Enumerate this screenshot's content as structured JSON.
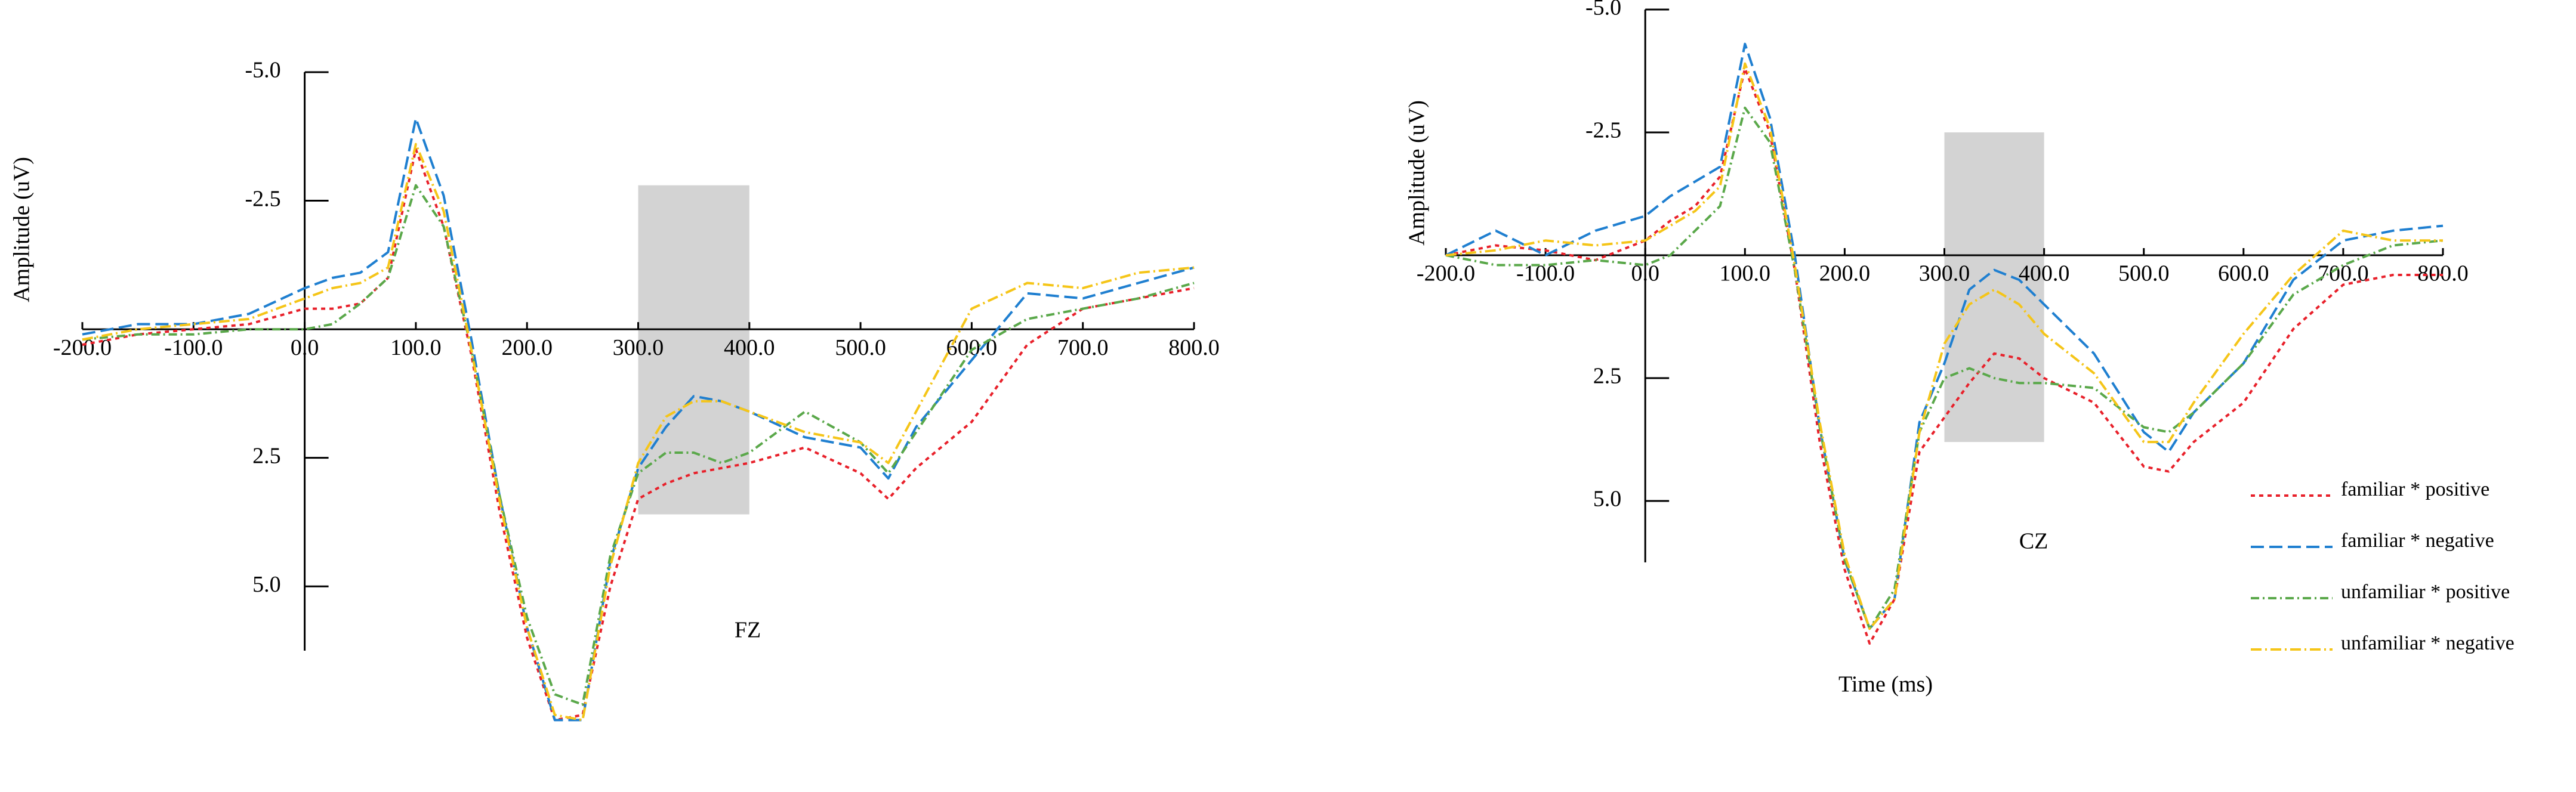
{
  "chart_data": [
    {
      "type": "line",
      "title": "FZ",
      "y_label": "Amplitude (uV)",
      "y_inverted": true,
      "xlim": [
        -200,
        800
      ],
      "ylim": [
        -5,
        6.25
      ],
      "xticks": [
        {
          "value": -200,
          "label": "-200.0"
        },
        {
          "value": -100,
          "label": "-100.0"
        },
        {
          "value": 0,
          "label": "0.0"
        },
        {
          "value": 100,
          "label": "100.0"
        },
        {
          "value": 200,
          "label": "200.0"
        },
        {
          "value": 300,
          "label": "300.0"
        },
        {
          "value": 400,
          "label": "400.0"
        },
        {
          "value": 500,
          "label": "500.0"
        },
        {
          "value": 600,
          "label": "600.0"
        },
        {
          "value": 700,
          "label": "700.0"
        },
        {
          "value": 800,
          "label": "800.0"
        }
      ],
      "yticks": [
        {
          "value": -5,
          "label": "-5.0"
        },
        {
          "value": -2.5,
          "label": "-2.5"
        },
        {
          "value": 2.5,
          "label": "2.5"
        },
        {
          "value": 5,
          "label": "5.0"
        }
      ],
      "shade": {
        "x": [
          300,
          400
        ],
        "y": [
          -2.8,
          3.6
        ],
        "color": "#d3d3d3"
      },
      "x": [
        -200,
        -150,
        -100,
        -50,
        0,
        25,
        50,
        75,
        100,
        125,
        150,
        175,
        200,
        225,
        250,
        275,
        300,
        325,
        350,
        375,
        400,
        450,
        500,
        525,
        550,
        600,
        650,
        700,
        750,
        800
      ],
      "series": [
        {
          "name": "familiar  * positive",
          "color": "#e8202a",
          "values": [
            0.3,
            0.1,
            0.0,
            -0.1,
            -0.4,
            -0.4,
            -0.5,
            -1.0,
            -3.5,
            -2.0,
            0.5,
            3.5,
            6.0,
            7.6,
            7.5,
            5.0,
            3.3,
            3.0,
            2.8,
            2.7,
            2.6,
            2.3,
            2.8,
            3.3,
            2.7,
            1.8,
            0.3,
            -0.4,
            -0.6,
            -0.8
          ]
        },
        {
          "name": "familiar  * negative",
          "color": "#1f7fd0",
          "values": [
            0.1,
            -0.1,
            -0.1,
            -0.3,
            -0.8,
            -1.0,
            -1.1,
            -1.5,
            -4.1,
            -2.6,
            0.2,
            3.2,
            5.8,
            7.6,
            7.6,
            4.5,
            2.7,
            1.9,
            1.3,
            1.4,
            1.6,
            2.1,
            2.3,
            2.9,
            1.9,
            0.6,
            -0.7,
            -0.6,
            -0.9,
            -1.2
          ]
        },
        {
          "name": "unfamiliar  * positive",
          "color": "#5aa84a",
          "values": [
            0.2,
            0.1,
            0.1,
            0.0,
            0.0,
            -0.1,
            -0.5,
            -1.0,
            -2.8,
            -2.0,
            0.4,
            3.2,
            5.6,
            7.1,
            7.3,
            4.4,
            2.8,
            2.4,
            2.4,
            2.6,
            2.4,
            1.6,
            2.2,
            2.8,
            2.0,
            0.4,
            -0.2,
            -0.4,
            -0.6,
            -0.9
          ]
        },
        {
          "name": "unfamiliar  * negative",
          "color": "#f5c518",
          "values": [
            0.2,
            0.0,
            -0.1,
            -0.2,
            -0.6,
            -0.8,
            -0.9,
            -1.2,
            -3.6,
            -2.3,
            0.4,
            3.3,
            5.8,
            7.5,
            7.6,
            4.6,
            2.6,
            1.7,
            1.4,
            1.4,
            1.6,
            2.0,
            2.2,
            2.6,
            1.6,
            -0.4,
            -0.9,
            -0.8,
            -1.1,
            -1.2
          ]
        }
      ]
    },
    {
      "type": "line",
      "title": "CZ",
      "y_label": "Amplitude (uV)",
      "x_label": "Time (ms)",
      "y_inverted": true,
      "legend": "bottom-right",
      "xlim": [
        -200,
        800
      ],
      "ylim": [
        -5,
        6.25
      ],
      "xticks": [
        {
          "value": -200,
          "label": "-200.0"
        },
        {
          "value": -100,
          "label": "-100.0"
        },
        {
          "value": 0,
          "label": "0.0"
        },
        {
          "value": 100,
          "label": "100.0"
        },
        {
          "value": 200,
          "label": "200.0"
        },
        {
          "value": 300,
          "label": "300.0"
        },
        {
          "value": 400,
          "label": "400.0"
        },
        {
          "value": 500,
          "label": "500.0"
        },
        {
          "value": 600,
          "label": "600.0"
        },
        {
          "value": 700,
          "label": "700.0"
        },
        {
          "value": 800,
          "label": "800.0"
        }
      ],
      "yticks": [
        {
          "value": -5,
          "label": "-5.0"
        },
        {
          "value": -2.5,
          "label": "-2.5"
        },
        {
          "value": 2.5,
          "label": "2.5"
        },
        {
          "value": 5,
          "label": "5.0"
        }
      ],
      "shade": {
        "x": [
          300,
          400
        ],
        "y": [
          -2.5,
          3.8
        ],
        "color": "#d3d3d3"
      },
      "x": [
        -200,
        -150,
        -100,
        -50,
        0,
        25,
        50,
        75,
        100,
        125,
        150,
        175,
        200,
        225,
        250,
        275,
        300,
        325,
        350,
        375,
        400,
        450,
        500,
        525,
        550,
        600,
        650,
        700,
        750,
        800
      ],
      "series": [
        {
          "name": "familiar  * positive",
          "color": "#e8202a",
          "values": [
            0.0,
            -0.2,
            -0.1,
            0.1,
            -0.3,
            -0.7,
            -1.0,
            -1.6,
            -3.8,
            -2.5,
            0.3,
            3.8,
            6.4,
            7.9,
            7.0,
            4.0,
            3.3,
            2.6,
            2.0,
            2.1,
            2.5,
            3.0,
            4.3,
            4.4,
            3.8,
            3.0,
            1.5,
            0.6,
            0.4,
            0.4
          ]
        },
        {
          "name": "familiar  * negative",
          "color": "#1f7fd0",
          "values": [
            0.0,
            -0.5,
            0.0,
            -0.5,
            -0.8,
            -1.2,
            -1.5,
            -1.8,
            -4.3,
            -2.8,
            0.0,
            3.5,
            6.2,
            7.6,
            7.0,
            3.4,
            2.2,
            0.7,
            0.3,
            0.5,
            1.0,
            2.0,
            3.6,
            4.0,
            3.2,
            2.2,
            0.5,
            -0.3,
            -0.5,
            -0.6
          ]
        },
        {
          "name": "unfamiliar  * positive",
          "color": "#5aa84a",
          "values": [
            0.0,
            0.2,
            0.2,
            0.1,
            0.2,
            0.0,
            -0.5,
            -1.0,
            -3.0,
            -2.3,
            0.3,
            3.5,
            6.2,
            7.6,
            6.8,
            3.6,
            2.5,
            2.3,
            2.5,
            2.6,
            2.6,
            2.7,
            3.5,
            3.6,
            3.2,
            2.2,
            0.8,
            0.2,
            -0.2,
            -0.3
          ]
        },
        {
          "name": "unfamiliar  * negative",
          "color": "#f5c518",
          "values": [
            0.0,
            -0.1,
            -0.3,
            -0.2,
            -0.3,
            -0.6,
            -0.9,
            -1.4,
            -3.9,
            -2.6,
            0.2,
            3.4,
            6.1,
            7.6,
            7.0,
            3.6,
            1.8,
            1.0,
            0.7,
            1.0,
            1.6,
            2.4,
            3.8,
            3.8,
            3.0,
            1.6,
            0.4,
            -0.5,
            -0.3,
            -0.3
          ]
        }
      ]
    }
  ]
}
